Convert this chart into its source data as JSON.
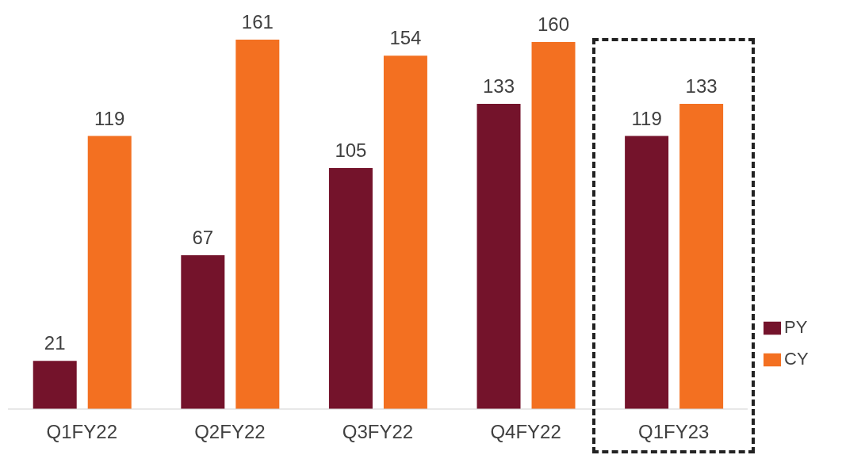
{
  "chart_data": {
    "type": "bar",
    "categories": [
      "Q1FY22",
      "Q2FY22",
      "Q3FY22",
      "Q4FY22",
      "Q1FY23"
    ],
    "series": [
      {
        "name": "PY",
        "color": "#74132b",
        "values": [
          21,
          67,
          105,
          133,
          119
        ]
      },
      {
        "name": "CY",
        "color": "#f37021",
        "values": [
          119,
          161,
          154,
          160,
          133
        ]
      }
    ],
    "data_labels": true,
    "grid": false,
    "legend": "right"
  }
}
